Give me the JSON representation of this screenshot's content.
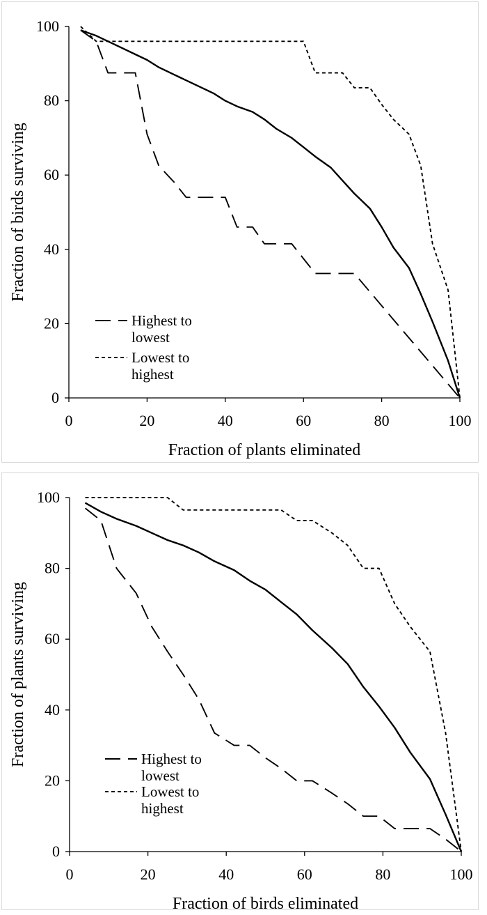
{
  "chart_data": [
    {
      "type": "line",
      "xlabel": "Fraction of plants eliminated",
      "ylabel": "Fraction of birds surviving",
      "xlim": [
        0,
        100
      ],
      "ylim": [
        0,
        100
      ],
      "xticks": [
        "0",
        "20",
        "40",
        "60",
        "80",
        "100"
      ],
      "yticks": [
        "0",
        "20",
        "40",
        "60",
        "80",
        "100"
      ],
      "grid": false,
      "legend": {
        "position": "bottom-left",
        "entries": [
          {
            "label_lines": [
              "Highest to",
              "lowest"
            ],
            "style": "long-dash"
          },
          {
            "label_lines": [
              "Lowest to",
              "highest"
            ],
            "style": "short-dash"
          }
        ]
      },
      "series": [
        {
          "style": "solid",
          "x": [
            3,
            7,
            10,
            13,
            17,
            20,
            23,
            27,
            30,
            33,
            37,
            40,
            43,
            47,
            50,
            53,
            57,
            60,
            63,
            67,
            70,
            73,
            77,
            80,
            83,
            87,
            90,
            93,
            97,
            100
          ],
          "y": [
            99,
            97.5,
            96,
            94.5,
            92.5,
            91,
            89,
            87,
            85.5,
            84,
            82,
            80,
            78.5,
            77,
            75,
            72.5,
            70,
            67.5,
            65,
            62,
            58.5,
            55,
            51,
            46,
            40.5,
            35,
            28,
            20.5,
            10,
            0
          ]
        },
        {
          "name": "Highest to lowest",
          "style": "long-dash",
          "x": [
            3,
            7,
            10,
            13,
            17,
            20,
            23,
            27,
            30,
            33,
            37,
            40,
            43,
            47,
            50,
            53,
            57,
            60,
            63,
            67,
            70,
            73,
            100
          ],
          "y": [
            99,
            96,
            87.5,
            87.5,
            87.5,
            71,
            62.5,
            58,
            54,
            54,
            54,
            54,
            46,
            46,
            41.5,
            41.5,
            41.5,
            37.5,
            33.5,
            33.5,
            33.5,
            33.5,
            0
          ]
        },
        {
          "name": "Lowest to highest",
          "style": "short-dash",
          "x": [
            3,
            7,
            10,
            60,
            63,
            67,
            70,
            73,
            77,
            80,
            83,
            87,
            90,
            93,
            97,
            100
          ],
          "y": [
            100,
            96,
            96,
            96,
            87.5,
            87.5,
            87.5,
            83.5,
            83.5,
            79,
            75,
            71,
            62.5,
            41.5,
            29,
            0
          ]
        }
      ]
    },
    {
      "type": "line",
      "xlabel": "Fraction of birds eliminated",
      "ylabel": "Fraction of plants surviving",
      "xlim": [
        0,
        100
      ],
      "ylim": [
        0,
        100
      ],
      "xticks": [
        "0",
        "20",
        "40",
        "60",
        "80",
        "100"
      ],
      "yticks": [
        "0",
        "20",
        "40",
        "60",
        "80",
        "100"
      ],
      "grid": false,
      "legend": {
        "position": "bottom-left",
        "entries": [
          {
            "label_lines": [
              "Highest to",
              "lowest"
            ],
            "style": "long-dash"
          },
          {
            "label_lines": [
              "Lowest to",
              "highest"
            ],
            "style": "short-dash"
          }
        ]
      },
      "series": [
        {
          "style": "solid",
          "x": [
            4,
            8,
            12,
            17,
            21,
            25,
            29,
            33,
            37,
            42,
            46,
            50,
            54,
            58,
            62,
            67,
            71,
            75,
            79,
            83,
            87,
            92,
            96,
            100
          ],
          "y": [
            98.5,
            96,
            94,
            92,
            90,
            88,
            86.5,
            84.5,
            82,
            79.5,
            76.5,
            74,
            70.5,
            67,
            62.5,
            57.5,
            53,
            46.5,
            41,
            35,
            28,
            20.5,
            10.5,
            0
          ]
        },
        {
          "name": "Highest to lowest",
          "style": "long-dash",
          "x": [
            4,
            8,
            12,
            17,
            21,
            25,
            29,
            33,
            37,
            42,
            46,
            50,
            54,
            58,
            62,
            67,
            71,
            75,
            79,
            83,
            87,
            92,
            96,
            100
          ],
          "y": [
            97,
            93.5,
            80,
            73,
            63.5,
            56.5,
            50,
            43,
            33.5,
            30,
            30,
            26.5,
            23.5,
            20,
            20,
            16.5,
            13.5,
            10,
            10,
            6.5,
            6.5,
            6.5,
            3.5,
            0
          ]
        },
        {
          "name": "Lowest to highest",
          "style": "short-dash",
          "x": [
            4,
            8,
            12,
            17,
            21,
            25,
            29,
            33,
            37,
            42,
            46,
            50,
            54,
            58,
            62,
            67,
            71,
            75,
            79,
            83,
            87,
            92,
            96,
            100
          ],
          "y": [
            100,
            100,
            100,
            100,
            100,
            100,
            96.5,
            96.5,
            96.5,
            96.5,
            96.5,
            96.5,
            96.5,
            93.5,
            93.5,
            90,
            86.5,
            80,
            80,
            70,
            63.5,
            56.5,
            33.5,
            0
          ]
        }
      ]
    }
  ]
}
